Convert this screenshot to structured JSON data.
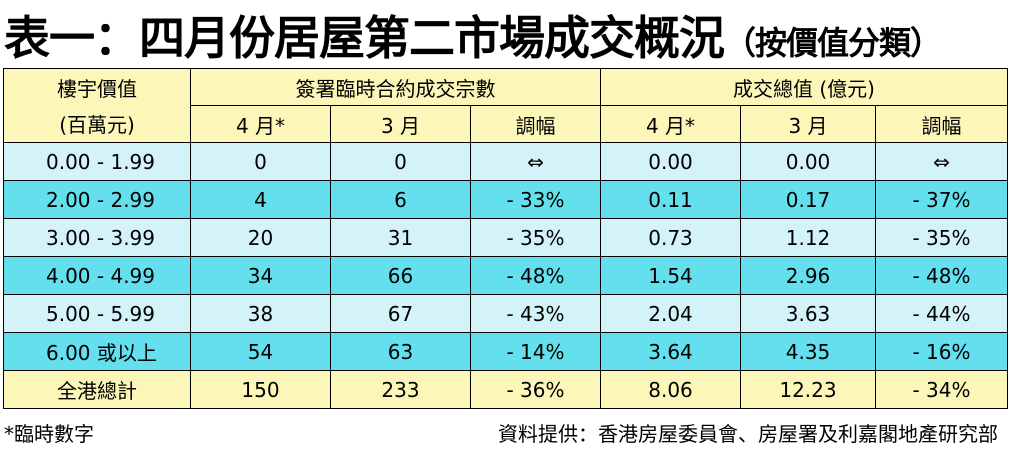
{
  "header": {
    "title": "表一：四月份居屋第二市場成交概況",
    "subtitle": "（按價值分類）"
  },
  "table": {
    "corner": [
      "樓宇價值",
      "(百萬元)"
    ],
    "groups": [
      "簽署臨時合約成交宗數",
      "成交總值 (億元)"
    ],
    "columns": [
      "4 月*",
      "3 月",
      "調幅",
      "4 月*",
      "3 月",
      "調幅"
    ],
    "rows": [
      [
        "0.00 - 1.99",
        "0",
        "0",
        "⇔",
        "0.00",
        "0.00",
        "⇔"
      ],
      [
        "2.00 - 2.99",
        "4",
        "6",
        "- 33%",
        "0.11",
        "0.17",
        "- 37%"
      ],
      [
        "3.00 - 3.99",
        "20",
        "31",
        "- 35%",
        "0.73",
        "1.12",
        "- 35%"
      ],
      [
        "4.00 - 4.99",
        "34",
        "66",
        "- 48%",
        "1.54",
        "2.96",
        "- 48%"
      ],
      [
        "5.00 - 5.99",
        "38",
        "67",
        "- 43%",
        "2.04",
        "3.63",
        "- 44%"
      ],
      [
        "6.00 或以上",
        "54",
        "63",
        "- 14%",
        "3.64",
        "4.35",
        "- 16%"
      ],
      [
        "全港總計",
        "150",
        "233",
        "- 36%",
        "8.06",
        "12.23",
        "- 34%"
      ]
    ]
  },
  "footer": {
    "note": "*臨時數字",
    "source": "資料提供：香港房屋委員會、房屋署及利嘉閣地產研究部"
  }
}
